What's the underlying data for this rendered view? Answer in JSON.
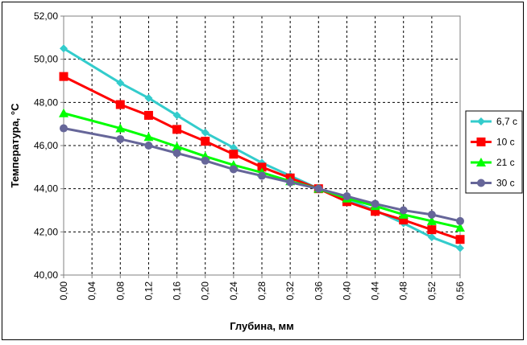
{
  "chart_data": {
    "type": "line",
    "xlabel": "Глубина, мм",
    "ylabel": "Температура, °С",
    "x": [
      0.0,
      0.08,
      0.12,
      0.16,
      0.2,
      0.24,
      0.28,
      0.32,
      0.36,
      0.4,
      0.44,
      0.48,
      0.52,
      0.56
    ],
    "x_ticks": [
      "0,00",
      "0,04",
      "0,08",
      "0,12",
      "0,16",
      "0,20",
      "0,24",
      "0,28",
      "0,32",
      "0,36",
      "0,40",
      "0,44",
      "0,48",
      "0,52",
      "0,56"
    ],
    "y_ticks": [
      "40,00",
      "42,00",
      "44,00",
      "46,00",
      "48,00",
      "50,00",
      "52,00"
    ],
    "xlim": [
      0,
      0.56
    ],
    "ylim": [
      40,
      52
    ],
    "grid": true,
    "legend_position": "right",
    "series": [
      {
        "name": "6,7 с",
        "color": "#33cccc",
        "marker": "diamond",
        "values": [
          50.5,
          48.9,
          48.2,
          47.4,
          46.6,
          45.9,
          45.2,
          44.6,
          44.0,
          43.5,
          43.0,
          42.4,
          41.75,
          41.25
        ]
      },
      {
        "name": "10 с",
        "color": "#ff0000",
        "marker": "square",
        "values": [
          49.2,
          47.9,
          47.4,
          46.75,
          46.2,
          45.6,
          45.0,
          44.5,
          44.0,
          43.4,
          42.95,
          42.55,
          42.1,
          41.65
        ]
      },
      {
        "name": "21 с",
        "color": "#00ff00",
        "marker": "triangle",
        "values": [
          47.5,
          46.8,
          46.4,
          45.95,
          45.5,
          45.1,
          44.75,
          44.35,
          44.0,
          43.55,
          43.2,
          42.8,
          42.5,
          42.2
        ]
      },
      {
        "name": "30 с",
        "color": "#666699",
        "marker": "circle",
        "values": [
          46.8,
          46.3,
          46.0,
          45.65,
          45.3,
          44.9,
          44.6,
          44.3,
          44.0,
          43.65,
          43.3,
          43.0,
          42.8,
          42.5
        ]
      }
    ]
  }
}
